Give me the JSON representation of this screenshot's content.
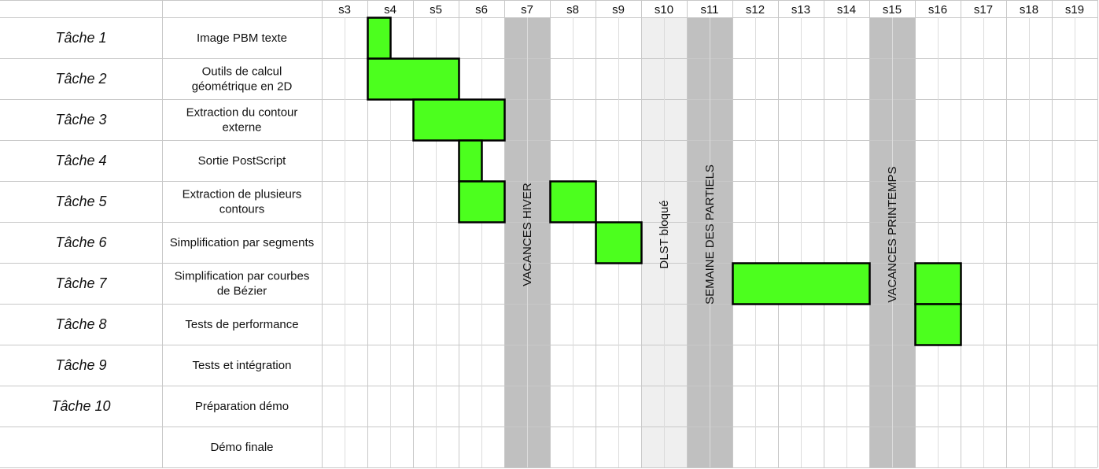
{
  "chart_data": {
    "type": "gantt",
    "weeks": [
      "s3",
      "s4",
      "s5",
      "s6",
      "s7",
      "s8",
      "s9",
      "s10",
      "s11",
      "s12",
      "s13",
      "s14",
      "s15",
      "s16",
      "s17",
      "s18",
      "s19"
    ],
    "tasks": [
      {
        "name": "Tâche 1",
        "desc": [
          "Image PBM texte"
        ]
      },
      {
        "name": "Tâche 2",
        "desc": [
          "Outils de calcul",
          "géométrique en 2D"
        ]
      },
      {
        "name": "Tâche 3",
        "desc": [
          "Extraction du contour",
          "externe"
        ]
      },
      {
        "name": "Tâche 4",
        "desc": [
          "Sortie PostScript"
        ]
      },
      {
        "name": "Tâche 5",
        "desc": [
          "Extraction de plusieurs",
          "contours"
        ]
      },
      {
        "name": "Tâche 6",
        "desc": [
          "Simplification par segments"
        ]
      },
      {
        "name": "Tâche 7",
        "desc": [
          "Simplification par courbes",
          "de Bézier"
        ]
      },
      {
        "name": "Tâche 8",
        "desc": [
          "Tests de performance"
        ]
      },
      {
        "name": "Tâche 9",
        "desc": [
          "Tests et intégration"
        ]
      },
      {
        "name": "Tâche 10",
        "desc": [
          "Préparation démo"
        ]
      },
      {
        "name": "",
        "desc": [
          "Démo finale"
        ]
      }
    ],
    "bars": [
      {
        "task": 0,
        "start": "s4",
        "end": "s4",
        "half": true
      },
      {
        "task": 1,
        "start": "s4",
        "end": "s5"
      },
      {
        "task": 2,
        "start": "s5",
        "end": "s6"
      },
      {
        "task": 3,
        "start": "s6",
        "end": "s6",
        "half": true
      },
      {
        "task": 4,
        "start": "s6",
        "end": "s6"
      },
      {
        "task": 4,
        "start": "s8",
        "end": "s8"
      },
      {
        "task": 5,
        "start": "s9",
        "end": "s9"
      },
      {
        "task": 6,
        "start": "s12",
        "end": "s14"
      },
      {
        "task": 6,
        "start": "s16",
        "end": "s16"
      },
      {
        "task": 7,
        "start": "s16",
        "end": "s16"
      }
    ],
    "special_weeks": [
      {
        "week": "s7",
        "label": "VACANCES HIVER",
        "color": "#c0c0c0"
      },
      {
        "week": "s10",
        "label": "DLST bloqué",
        "color": "#efefef"
      },
      {
        "week": "s11",
        "label": "SEMAINE DES PARTIELS",
        "color": "#c0c0c0"
      },
      {
        "week": "s15",
        "label": "VACANCES PRINTEMPS",
        "color": "#c0c0c0"
      }
    ],
    "colors": {
      "bar": "#4cff1e",
      "grid": "#c8c8c8",
      "border": "#000000"
    }
  }
}
